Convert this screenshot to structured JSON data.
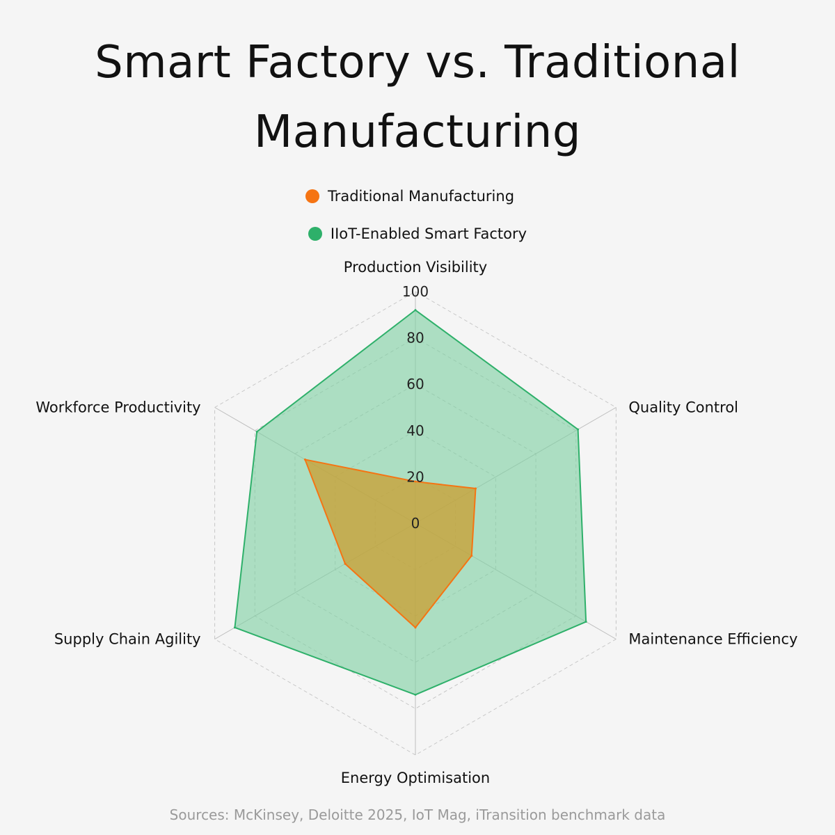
{
  "title": [
    "Smart Factory vs. Traditional",
    "Manufacturing"
  ],
  "legend": [
    {
      "label": "Traditional Manufacturing",
      "color": "#f57413"
    },
    {
      "label": "IIoT-Enabled Smart Factory",
      "color": "#2eb06a"
    }
  ],
  "source": "Sources: McKinsey, Deloitte 2025, IoT Mag, iTransition benchmark data",
  "chart_data": {
    "type": "radar",
    "axes": [
      "Production Visibility",
      "Quality Control",
      "Maintenance Efficiency",
      "Energy Optimisation",
      "Supply Chain Agility",
      "Workforce Productivity"
    ],
    "ticks": [
      0,
      20,
      40,
      60,
      80,
      100
    ],
    "range": [
      0,
      100
    ],
    "grid": true,
    "legend_position": "top-center",
    "series": [
      {
        "name": "Traditional Manufacturing",
        "values": [
          18,
          30,
          28,
          45,
          35,
          55
        ],
        "color": "#f57413",
        "fill": "#c9a035"
      },
      {
        "name": "IIoT-Enabled Smart Factory",
        "values": [
          92,
          81,
          85,
          74,
          90,
          79
        ],
        "color": "#2eb06a",
        "fill": "#7fd0a3"
      }
    ]
  }
}
